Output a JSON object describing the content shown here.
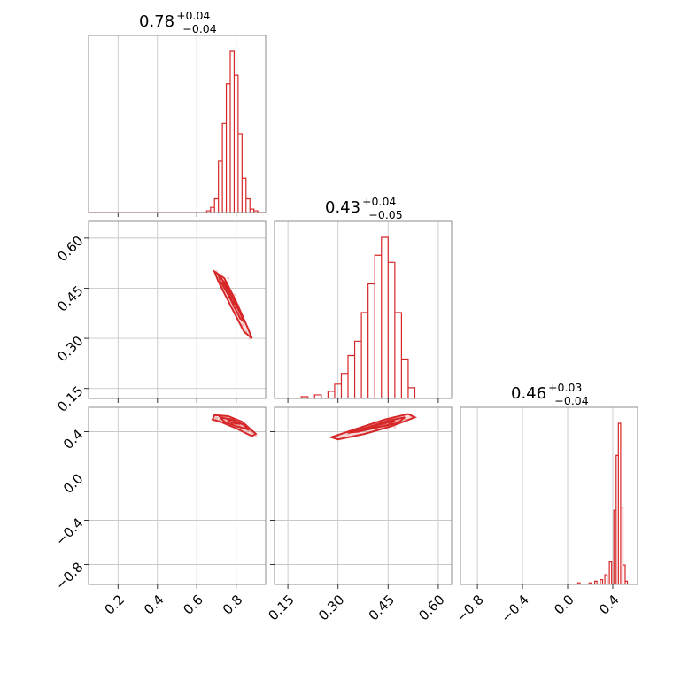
{
  "colors": {
    "series": "#d62728",
    "frame": "#8c8c8c",
    "grid": "#c8c8c8"
  },
  "chart_data": [
    {
      "type": "histogram",
      "panel": "diag-0",
      "title": {
        "median": "0.78",
        "plus": "+0.04",
        "minus": "−0.04"
      },
      "x": [
        0.66,
        0.68,
        0.7,
        0.72,
        0.74,
        0.76,
        0.78,
        0.8,
        0.82,
        0.84,
        0.86,
        0.88,
        0.9
      ],
      "values": [
        1,
        3,
        8,
        30,
        52,
        75,
        94,
        80,
        46,
        20,
        8,
        2,
        1
      ],
      "xlim": [
        0.05,
        0.95
      ],
      "ticks": [
        0.2,
        0.4,
        0.6,
        0.8
      ],
      "grid": true
    },
    {
      "type": "histogram",
      "panel": "diag-1",
      "title": {
        "median": "0.43",
        "plus": "+0.04",
        "minus": "−0.05"
      },
      "x": [
        0.2,
        0.24,
        0.28,
        0.3,
        0.32,
        0.34,
        0.36,
        0.38,
        0.4,
        0.42,
        0.44,
        0.46,
        0.48,
        0.5,
        0.52
      ],
      "values": [
        1,
        2,
        4,
        8,
        14,
        24,
        32,
        48,
        64,
        80,
        90,
        76,
        48,
        22,
        6
      ],
      "xlim": [
        0.11,
        0.64
      ],
      "ticks": [
        0.15,
        0.3,
        0.45,
        0.6
      ],
      "grid": true
    },
    {
      "type": "histogram",
      "panel": "diag-2",
      "title": {
        "median": "0.46",
        "plus": "+0.03",
        "minus": "−0.04"
      },
      "x": [
        0.1,
        0.2,
        0.25,
        0.3,
        0.34,
        0.38,
        0.42,
        0.44,
        0.46,
        0.48,
        0.5,
        0.52
      ],
      "values": [
        1,
        1,
        2,
        3,
        6,
        14,
        46,
        80,
        100,
        48,
        12,
        2
      ],
      "xlim": [
        -0.95,
        0.62
      ],
      "ticks": [
        -0.8,
        -0.4,
        0.0,
        0.4
      ],
      "grid": true
    },
    {
      "type": "scatter",
      "panel": "pair-1-0",
      "note": "2D posterior, param 2 vs param 1",
      "points": [
        [
          0.7,
          0.5
        ],
        [
          0.72,
          0.49
        ],
        [
          0.74,
          0.47
        ],
        [
          0.75,
          0.45
        ],
        [
          0.76,
          0.44
        ],
        [
          0.77,
          0.42
        ],
        [
          0.78,
          0.41
        ],
        [
          0.79,
          0.39
        ],
        [
          0.8,
          0.38
        ],
        [
          0.82,
          0.36
        ],
        [
          0.83,
          0.34
        ],
        [
          0.85,
          0.32
        ],
        [
          0.87,
          0.3
        ],
        [
          0.73,
          0.46
        ],
        [
          0.81,
          0.4
        ],
        [
          0.76,
          0.48
        ],
        [
          0.84,
          0.35
        ],
        [
          0.79,
          0.43
        ]
      ],
      "contours": [
        [
          [
            0.69,
            0.5
          ],
          [
            0.74,
            0.48
          ],
          [
            0.8,
            0.41
          ],
          [
            0.86,
            0.33
          ],
          [
            0.88,
            0.3
          ],
          [
            0.84,
            0.32
          ],
          [
            0.77,
            0.4
          ],
          [
            0.71,
            0.47
          ]
        ],
        [
          [
            0.71,
            0.49
          ],
          [
            0.75,
            0.46
          ],
          [
            0.8,
            0.4
          ],
          [
            0.84,
            0.35
          ],
          [
            0.82,
            0.36
          ],
          [
            0.76,
            0.43
          ],
          [
            0.72,
            0.47
          ]
        ],
        [
          [
            0.73,
            0.47
          ],
          [
            0.77,
            0.44
          ],
          [
            0.8,
            0.4
          ],
          [
            0.78,
            0.41
          ],
          [
            0.75,
            0.45
          ]
        ]
      ],
      "xlim": [
        0.05,
        0.95
      ],
      "ylim": [
        0.12,
        0.65
      ],
      "yticks": [
        0.15,
        0.3,
        0.45,
        0.6
      ],
      "grid": true
    },
    {
      "type": "scatter",
      "panel": "pair-2-0",
      "note": "2D posterior, param 3 vs param 1",
      "points": [
        [
          0.7,
          0.52
        ],
        [
          0.72,
          0.51
        ],
        [
          0.74,
          0.5
        ],
        [
          0.76,
          0.49
        ],
        [
          0.78,
          0.48
        ],
        [
          0.8,
          0.47
        ],
        [
          0.82,
          0.45
        ],
        [
          0.84,
          0.43
        ],
        [
          0.86,
          0.41
        ],
        [
          0.88,
          0.39
        ],
        [
          0.77,
          0.51
        ],
        [
          0.81,
          0.44
        ],
        [
          0.85,
          0.46
        ],
        [
          0.9,
          0.36
        ]
      ],
      "contours": [
        [
          [
            0.69,
            0.55
          ],
          [
            0.76,
            0.54
          ],
          [
            0.83,
            0.49
          ],
          [
            0.9,
            0.38
          ],
          [
            0.88,
            0.36
          ],
          [
            0.8,
            0.43
          ],
          [
            0.72,
            0.49
          ],
          [
            0.68,
            0.51
          ]
        ],
        [
          [
            0.72,
            0.53
          ],
          [
            0.78,
            0.51
          ],
          [
            0.84,
            0.46
          ],
          [
            0.86,
            0.42
          ],
          [
            0.8,
            0.45
          ],
          [
            0.74,
            0.49
          ]
        ],
        [
          [
            0.75,
            0.52
          ],
          [
            0.79,
            0.5
          ],
          [
            0.82,
            0.47
          ],
          [
            0.78,
            0.48
          ]
        ]
      ],
      "xlim": [
        0.05,
        0.95
      ],
      "ylim": [
        -0.98,
        0.62
      ],
      "xticks": [
        0.2,
        0.4,
        0.6,
        0.8
      ],
      "yticks": [
        -0.8,
        -0.4,
        0.0,
        0.4
      ],
      "grid": true
    },
    {
      "type": "scatter",
      "panel": "pair-2-1",
      "note": "2D posterior, param 3 vs param 2",
      "points": [
        [
          0.3,
          0.36
        ],
        [
          0.33,
          0.38
        ],
        [
          0.36,
          0.4
        ],
        [
          0.38,
          0.42
        ],
        [
          0.4,
          0.44
        ],
        [
          0.42,
          0.46
        ],
        [
          0.44,
          0.47
        ],
        [
          0.46,
          0.48
        ],
        [
          0.48,
          0.5
        ],
        [
          0.5,
          0.52
        ],
        [
          0.35,
          0.42
        ],
        [
          0.41,
          0.49
        ],
        [
          0.47,
          0.44
        ],
        [
          0.52,
          0.54
        ]
      ],
      "contours": [
        [
          [
            0.28,
            0.35
          ],
          [
            0.36,
            0.43
          ],
          [
            0.44,
            0.51
          ],
          [
            0.51,
            0.56
          ],
          [
            0.53,
            0.53
          ],
          [
            0.46,
            0.45
          ],
          [
            0.38,
            0.38
          ],
          [
            0.3,
            0.33
          ]
        ],
        [
          [
            0.33,
            0.39
          ],
          [
            0.39,
            0.44
          ],
          [
            0.45,
            0.5
          ],
          [
            0.5,
            0.53
          ],
          [
            0.48,
            0.48
          ],
          [
            0.42,
            0.44
          ],
          [
            0.36,
            0.4
          ]
        ],
        [
          [
            0.38,
            0.43
          ],
          [
            0.42,
            0.46
          ],
          [
            0.47,
            0.5
          ],
          [
            0.45,
            0.46
          ],
          [
            0.4,
            0.43
          ]
        ]
      ],
      "xlim": [
        0.11,
        0.64
      ],
      "ylim": [
        -0.98,
        0.62
      ],
      "xticks": [
        0.15,
        0.3,
        0.45,
        0.6
      ],
      "grid": true
    }
  ],
  "tick_labels": {
    "x0": [
      "0.2",
      "0.4",
      "0.6",
      "0.8"
    ],
    "x1": [
      "0.15",
      "0.30",
      "0.45",
      "0.60"
    ],
    "x2": [
      "−0.8",
      "−0.4",
      "0.0",
      "0.4"
    ],
    "y1": [
      "0.15",
      "0.30",
      "0.45",
      "0.60"
    ],
    "y2": [
      "−0.8",
      "−0.4",
      "0.0",
      "0.4"
    ]
  }
}
